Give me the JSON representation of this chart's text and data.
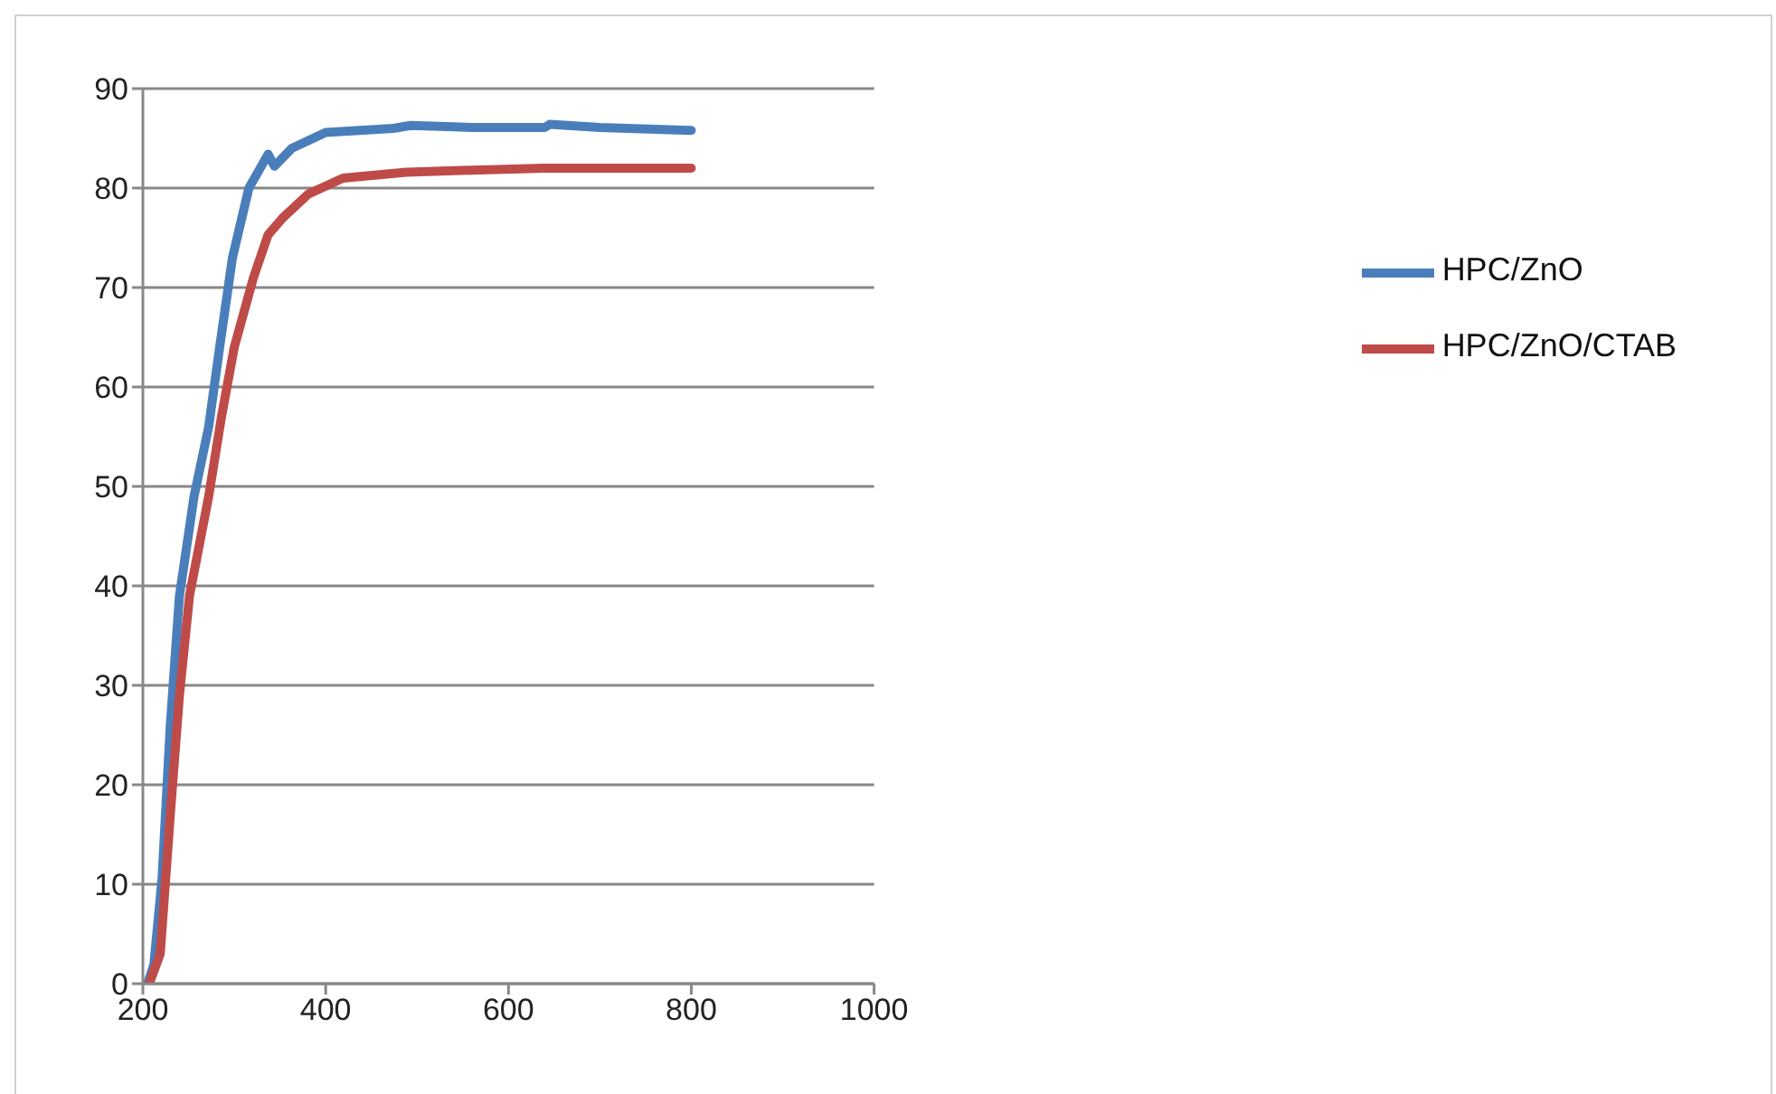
{
  "chart_data": {
    "type": "line",
    "xlim": [
      200,
      1000
    ],
    "xticks": [
      200,
      400,
      600,
      800,
      1000
    ],
    "ylim": [
      0,
      90
    ],
    "yticks": [
      0,
      10,
      20,
      30,
      40,
      50,
      60,
      70,
      80,
      90
    ],
    "grid": "y",
    "legend": "right",
    "marker": "none",
    "line_style": "solid",
    "series": [
      {
        "name": "HPC/ZnO",
        "color": "#4a7ebb",
        "x": [
          205,
          212,
          221,
          230,
          240,
          256,
          272,
          284,
          298,
          316,
          337,
          344,
          363,
          400,
          474,
          493,
          560,
          640,
          645,
          700,
          800
        ],
        "values": [
          0,
          1.9,
          10.6,
          26,
          39,
          49,
          56,
          64,
          73,
          80,
          83.4,
          82.2,
          84,
          85.6,
          86,
          86.3,
          86.1,
          86.1,
          86.4,
          86.1,
          85.8
        ]
      },
      {
        "name": "HPC/ZnO/CTAB",
        "color": "#be4b48",
        "x": [
          207,
          219,
          230,
          240,
          251,
          272,
          286,
          300,
          321,
          337,
          353,
          381,
          419,
          488,
          560,
          640,
          700,
          800
        ],
        "values": [
          0,
          3,
          17,
          29,
          39,
          49,
          57,
          64,
          71,
          75.3,
          77,
          79.4,
          81,
          81.6,
          81.8,
          82,
          82,
          82
        ]
      }
    ]
  }
}
